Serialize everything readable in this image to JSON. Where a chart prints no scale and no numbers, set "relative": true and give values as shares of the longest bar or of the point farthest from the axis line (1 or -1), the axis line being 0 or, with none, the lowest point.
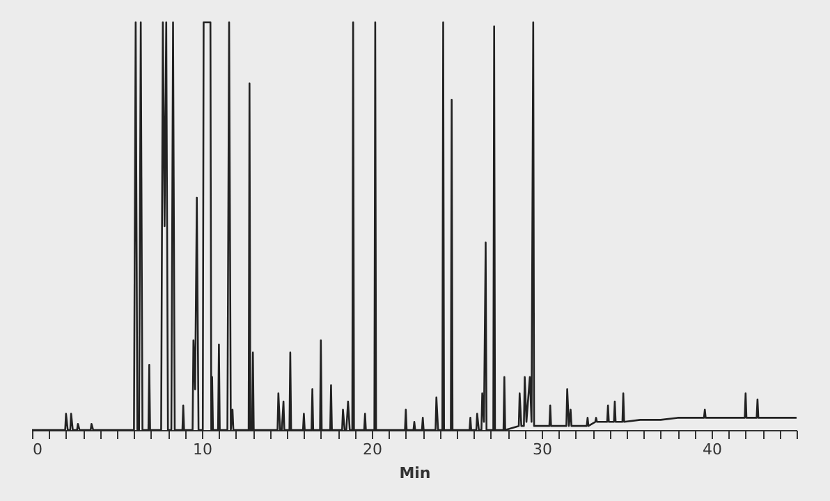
{
  "chart_data": {
    "type": "line",
    "relative": true,
    "xlabel": "Min",
    "xlim": [
      0,
      45
    ],
    "xticks": [
      0,
      {
        "value": 1,
        "label": null
      },
      {
        "value": 2,
        "label": null
      },
      {
        "value": 3,
        "label": null
      },
      {
        "value": 4,
        "label": null
      },
      {
        "value": 5,
        "label": null
      },
      {
        "value": 6,
        "label": null
      },
      {
        "value": 7,
        "label": null
      },
      {
        "value": 8,
        "label": null
      },
      {
        "value": 9,
        "label": null
      },
      10,
      {
        "value": 11,
        "label": null
      },
      {
        "value": 12,
        "label": null
      },
      {
        "value": 13,
        "label": null
      },
      {
        "value": 14,
        "label": null
      },
      {
        "value": 15,
        "label": null
      },
      {
        "value": 16,
        "label": null
      },
      {
        "value": 17,
        "label": null
      },
      {
        "value": 18,
        "label": null
      },
      {
        "value": 19,
        "label": null
      },
      20,
      {
        "value": 21,
        "label": null
      },
      {
        "value": 22,
        "label": null
      },
      {
        "value": 23,
        "label": null
      },
      {
        "value": 24,
        "label": null
      },
      {
        "value": 25,
        "label": null
      },
      {
        "value": 26,
        "label": null
      },
      {
        "value": 27,
        "label": null
      },
      {
        "value": 28,
        "label": null
      },
      {
        "value": 29,
        "label": null
      },
      30,
      {
        "value": 31,
        "label": null
      },
      {
        "value": 32,
        "label": null
      },
      {
        "value": 33,
        "label": null
      },
      {
        "value": 34,
        "label": null
      },
      {
        "value": 35,
        "label": null
      },
      {
        "value": 36,
        "label": null
      },
      {
        "value": 37,
        "label": null
      },
      {
        "value": 38,
        "label": null
      },
      {
        "value": 39,
        "label": null
      },
      40,
      {
        "value": 41,
        "label": null
      },
      {
        "value": 42,
        "label": null
      },
      {
        "value": 43,
        "label": null
      },
      {
        "value": 44,
        "label": null
      },
      {
        "value": 45,
        "label": null
      }
    ],
    "grid": false,
    "marker": "none",
    "line_style": "solid",
    "series": [
      {
        "color": "#222222",
        "x": [
          0,
          1.95,
          2.0,
          2.1,
          2.25,
          2.3,
          2.4,
          2.65,
          2.7,
          2.8,
          3.45,
          3.5,
          3.6,
          6.0,
          6.1,
          6.2,
          6.3,
          6.4,
          6.5,
          6.85,
          6.9,
          6.95,
          7.6,
          7.7,
          7.8,
          7.9,
          8.0,
          8.2,
          8.3,
          8.4,
          8.85,
          8.9,
          8.95,
          9.45,
          9.5,
          9.6,
          9.7,
          9.8,
          10.05,
          10.1,
          10.5,
          10.55,
          10.6,
          10.65,
          10.95,
          11.0,
          11.05,
          11.5,
          11.6,
          11.7,
          11.8,
          11.85,
          12.75,
          12.8,
          12.85,
          12.95,
          13.0,
          13.05,
          14.45,
          14.5,
          14.6,
          14.7,
          14.8,
          14.85,
          15.15,
          15.2,
          15.25,
          15.95,
          16.0,
          16.05,
          16.45,
          16.5,
          16.55,
          16.95,
          17.0,
          17.05,
          17.55,
          17.6,
          17.65,
          18.25,
          18.3,
          18.4,
          18.5,
          18.6,
          18.7,
          18.85,
          18.9,
          18.95,
          19.55,
          19.6,
          19.65,
          20.15,
          20.2,
          20.25,
          21.95,
          22.0,
          22.05,
          22.45,
          22.5,
          22.55,
          22.95,
          23.0,
          23.05,
          23.75,
          23.8,
          23.9,
          24.15,
          24.2,
          24.25,
          24.65,
          24.7,
          24.75,
          25.75,
          25.8,
          25.85,
          26.15,
          26.2,
          26.3,
          26.45,
          26.5,
          26.6,
          26.7,
          26.75,
          27.15,
          27.2,
          27.25,
          27.75,
          27.8,
          27.85,
          28.65,
          28.7,
          28.8,
          28.95,
          29.0,
          29.1,
          29.3,
          29.4,
          29.5,
          29.55,
          30.45,
          30.5,
          30.55,
          31.45,
          31.5,
          31.6,
          31.7,
          31.75,
          32.65,
          32.7,
          32.75,
          33.15,
          33.2,
          33.25,
          33.85,
          33.9,
          33.95,
          34.25,
          34.3,
          34.35,
          34.75,
          34.8,
          34.85,
          35.8,
          37.0,
          38.0,
          39.55,
          39.6,
          39.65,
          41.95,
          42.0,
          42.05,
          42.65,
          42.7,
          42.75,
          45.0
        ],
        "values": [
          0,
          0,
          0.04,
          0,
          0,
          0.04,
          0,
          0,
          0.015,
          0,
          0,
          0.015,
          0,
          0,
          1,
          0,
          0,
          1,
          0,
          0,
          0.16,
          0,
          0,
          1,
          0.5,
          1,
          0,
          0,
          1,
          0,
          0,
          0.06,
          0,
          0,
          0.22,
          0.1,
          0.57,
          0,
          0,
          1,
          1,
          0,
          0.13,
          0,
          0,
          0.21,
          0,
          0,
          1,
          0,
          0.05,
          0,
          0,
          0.85,
          0,
          0,
          0.19,
          0,
          0,
          0.09,
          0,
          0,
          0.07,
          0,
          0,
          0.19,
          0,
          0,
          0.04,
          0,
          0,
          0.1,
          0,
          0,
          0.22,
          0,
          0,
          0.11,
          0,
          0,
          0.05,
          0,
          0,
          0.07,
          0,
          0,
          1,
          0,
          0,
          0.04,
          0,
          0,
          1,
          0,
          0,
          0.05,
          0,
          0,
          0.02,
          0,
          0,
          0.03,
          0,
          0,
          0.08,
          0,
          0,
          1,
          0,
          0,
          0.81,
          0,
          0,
          0.03,
          0,
          0,
          0.04,
          0,
          0,
          0.09,
          0.02,
          0.46,
          0,
          0,
          0.99,
          0,
          0,
          0.13,
          0,
          0.01,
          0.09,
          0.01,
          0.01,
          0.13,
          0.02,
          0.13,
          0.02,
          1,
          0.01,
          0.01,
          0.06,
          0.01,
          0.01,
          0.1,
          0.01,
          0.05,
          0.01,
          0.01,
          0.03,
          0.01,
          0.02,
          0.03,
          0.02,
          0.02,
          0.06,
          0.02,
          0.02,
          0.07,
          0.02,
          0.02,
          0.09,
          0.02,
          0.025,
          0.025,
          0.03,
          0.03,
          0.05,
          0.03,
          0.03,
          0.09,
          0.03,
          0.03,
          0.075,
          0.03,
          0.03
        ]
      }
    ]
  }
}
